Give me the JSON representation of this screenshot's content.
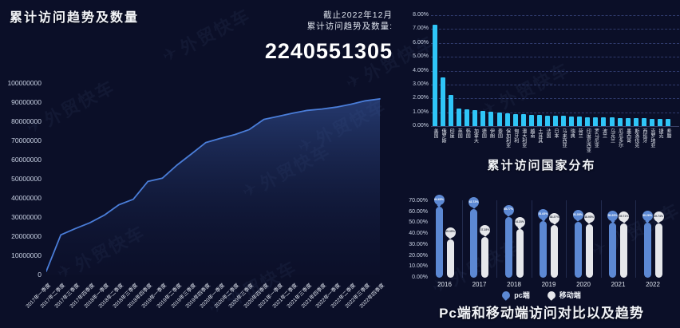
{
  "app": {
    "background": "#0b0f28"
  },
  "watermark": {
    "text": "外贸快车"
  },
  "header": {
    "title": "累计访问趋势及数量"
  },
  "summary": {
    "as_of": "截止2022年12月",
    "label": "累计访问趋势及数量:",
    "value": "2240551305"
  },
  "chart_data": [
    {
      "id": "cumulative-visits-trend",
      "type": "area",
      "title": "累计访问趋势及数量",
      "categories": [
        "2017年一季度",
        "2017年二季度",
        "2017年三季度",
        "2017年四季度",
        "2018年一季度",
        "2018年二季度",
        "2018年三季度",
        "2018年四季度",
        "2019年一季度",
        "2019年二季度",
        "2019年三季度",
        "2019年四季度",
        "2020年一季度",
        "2020年二季度",
        "2020年三季度",
        "2020年四季度",
        "2021年一季度",
        "2021年二季度",
        "2021年三季度",
        "2021年四季度",
        "2022年一季度",
        "2022年二季度",
        "2022年三季度",
        "2022年四季度"
      ],
      "values": [
        1700000,
        20700000,
        24000000,
        27000000,
        31000000,
        36400000,
        39300000,
        48600000,
        50300000,
        57100000,
        62900000,
        68900000,
        71100000,
        73100000,
        75700000,
        81000000,
        82600000,
        84300000,
        85700000,
        86400000,
        87400000,
        88900000,
        90700000,
        91700000
      ],
      "ylim": [
        0,
        100000000
      ],
      "ytick_labels": [
        "0",
        "10000000",
        "20000000",
        "30000000",
        "40000000",
        "50000000",
        "60000000",
        "70000000",
        "80000000",
        "90000000",
        "100000000"
      ],
      "line_color": "#4a7dd8",
      "area_color_top": "rgba(58,92,168,0.55)",
      "area_color_bottom": "rgba(20,30,70,0.05)",
      "grid": false,
      "legend_position": "none"
    },
    {
      "id": "country-distribution",
      "type": "bar",
      "title": "累计访问国家分布",
      "categories": [
        "美国",
        "俄罗斯",
        "印度",
        "英国",
        "韩国",
        "加拿大",
        "德国",
        "伊朗",
        "泰国",
        "保加利亚",
        "匈牙利",
        "澳大利亚",
        "越南",
        "土耳其",
        "法国",
        "日本",
        "马来西亚",
        "瑞典",
        "荷兰",
        "印度尼西亚",
        "罗马尼亚",
        "波兰",
        "乌克兰",
        "厄瓜多尔",
        "墨西哥",
        "斯洛伐克",
        "西班牙",
        "克罗地亚",
        "捷克",
        "希腊"
      ],
      "values": [
        7.3,
        3.5,
        2.25,
        1.25,
        1.2,
        1.15,
        1.1,
        1.05,
        1.0,
        0.92,
        0.88,
        0.85,
        0.82,
        0.78,
        0.76,
        0.74,
        0.72,
        0.7,
        0.68,
        0.66,
        0.64,
        0.62,
        0.61,
        0.6,
        0.58,
        0.56,
        0.55,
        0.53,
        0.51,
        0.5
      ],
      "ylim": [
        0,
        8
      ],
      "ytick_labels": [
        "0.00%",
        "1.00%",
        "2.00%",
        "3.00%",
        "4.00%",
        "5.00%",
        "6.00%",
        "7.00%",
        "8.00%"
      ],
      "bar_color": "#2fc5f7",
      "grid": true,
      "legend_position": "none"
    },
    {
      "id": "pc-mobile-comparison",
      "type": "bar",
      "title": "Pc端和移动端访问对比以及趋势",
      "categories": [
        "2016",
        "2017",
        "2018",
        "2019",
        "2020",
        "2021",
        "2022"
      ],
      "series": [
        {
          "name": "pc端",
          "color": "#5c88d3",
          "label_text_color": "#ffffff",
          "values": [
            64.65,
            62.72,
            55.77,
            51.63,
            51.05,
            50.29,
            50.26
          ],
          "labels": [
            "64.65%",
            "62.72%",
            "55.77%",
            "51.63%",
            "51.05%",
            "50.29%",
            "50.26%"
          ]
        },
        {
          "name": "移动端",
          "color": "#e6e7eb",
          "label_text_color": "#3a3f4c",
          "values": [
            35.35,
            37.28,
            44.23,
            48.37,
            48.95,
            49.71,
            49.74
          ],
          "labels": [
            "35.35%",
            "37.28%",
            "44.23%",
            "48.37%",
            "48.95%",
            "49.71%",
            "49.74%"
          ]
        }
      ],
      "ylim": [
        0,
        70
      ],
      "ytick_labels": [
        "0.00%",
        "10.00%",
        "20.00%",
        "30.00%",
        "40.00%",
        "50.00%",
        "60.00%",
        "70.00%"
      ],
      "grid": false,
      "legend_position": "bottom"
    }
  ]
}
